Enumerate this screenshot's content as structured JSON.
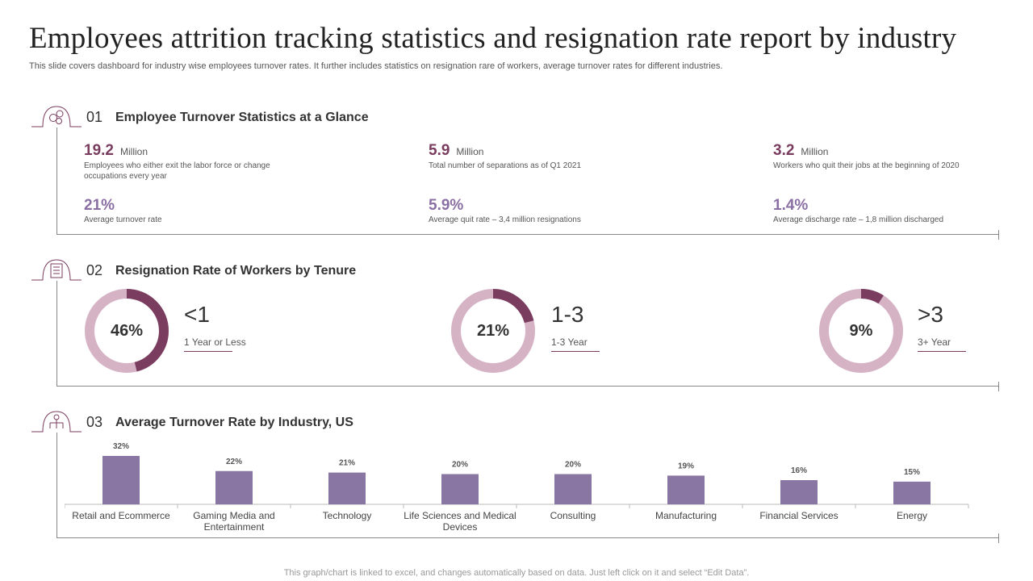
{
  "header": {
    "title": "Employees attrition tracking statistics and resignation rate report by industry",
    "subtitle": "This slide covers dashboard for industry wise employees turnover rates. It further includes statistics on resignation rare of workers, average turnover rates for different industries."
  },
  "section1": {
    "number": "01",
    "title": "Employee Turnover Statistics at a Glance",
    "icon": "people-coins-icon",
    "stats": [
      {
        "value": "19.2",
        "unit": "Million",
        "desc": "Employees  who either exit the labor force or change occupations every year"
      },
      {
        "value": "5.9",
        "unit": "Million",
        "desc": "Total number of separations as of Q1 2021"
      },
      {
        "value": "3.2",
        "unit": "Million",
        "desc": "Workers who quit their jobs at the beginning of 2020"
      },
      {
        "value": "21%",
        "unit": "",
        "desc": "Average turnover rate"
      },
      {
        "value": "5.9%",
        "unit": "",
        "desc": "Average quit rate – 3,4 million  resignations"
      },
      {
        "value": "1.4%",
        "unit": "",
        "desc": "Average discharge rate – 1,8 million  discharged"
      }
    ]
  },
  "section2": {
    "number": "02",
    "title": "Resignation Rate of Workers by Tenure",
    "icon": "building-icon",
    "items": [
      {
        "percent": 46,
        "label": "46%",
        "big": "<1",
        "small": "1 Year or Less"
      },
      {
        "percent": 21,
        "label": "21%",
        "big": "1-3",
        "small": "1-3 Year"
      },
      {
        "percent": 9,
        "label": "9%",
        "big": ">3",
        "small": "3+ Year"
      }
    ]
  },
  "section3": {
    "number": "03",
    "title": "Average Turnover Rate by Industry, US",
    "icon": "org-chart-icon"
  },
  "chart_data": {
    "type": "bar",
    "categories": [
      "Retail and Ecommerce",
      "Gaming Media and Entertainment",
      "Technology",
      "Life Sciences and Medical Devices",
      "Consulting",
      "Manufacturing",
      "Financial Services",
      "Energy"
    ],
    "category_lines": [
      [
        "Retail and Ecommerce"
      ],
      [
        "Gaming Media and",
        "Entertainment"
      ],
      [
        "Technology"
      ],
      [
        "Life Sciences and Medical",
        "Devices"
      ],
      [
        "Consulting"
      ],
      [
        "Manufacturing"
      ],
      [
        "Financial Services"
      ],
      [
        "Energy"
      ]
    ],
    "values": [
      32,
      22,
      21,
      20,
      20,
      19,
      16,
      15
    ],
    "value_labels": [
      "32%",
      "22%",
      "21%",
      "20%",
      "20%",
      "19%",
      "16%",
      "15%"
    ],
    "title": "Average Turnover Rate by Industry, US",
    "ylim": [
      0,
      32
    ]
  },
  "colors": {
    "dark_purple": "#7a3d5f",
    "light_pink": "#d5b3c5",
    "bar": "#8a76a3",
    "light_purple": "#8a6fa3"
  },
  "footer": "This graph/chart is linked to excel, and changes automatically based on data. Just left click on it and select “Edit Data”."
}
